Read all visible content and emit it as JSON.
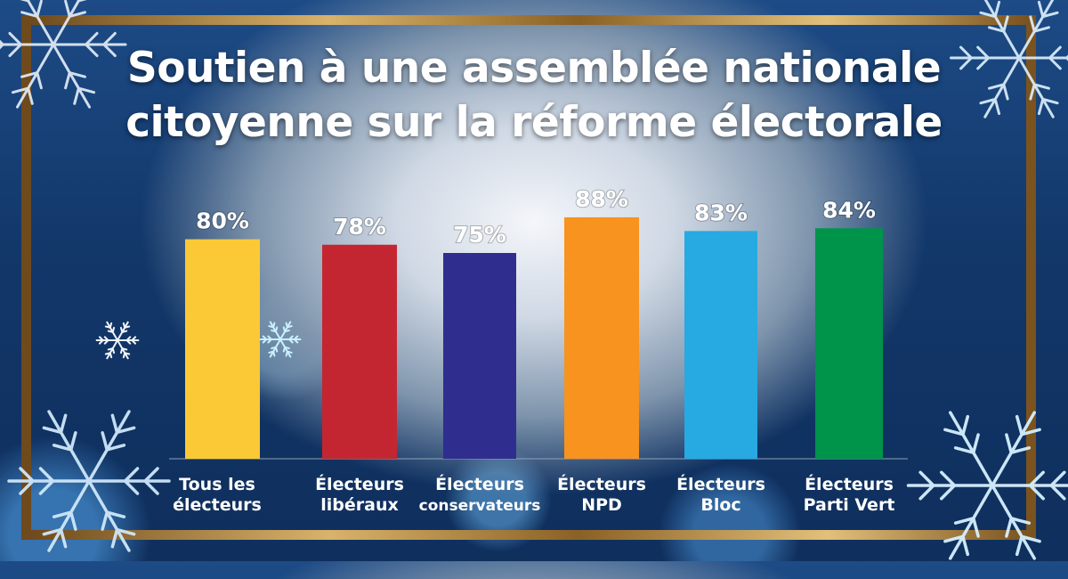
{
  "chart_data": {
    "type": "bar",
    "title_lines": [
      "Soutien à une assemblée nationale",
      "citoyenne sur la réforme électorale"
    ],
    "categories": [
      [
        "Tous les",
        "électeurs"
      ],
      [
        "Électeurs",
        "libéraux"
      ],
      [
        "Électeurs",
        "conservateurs"
      ],
      [
        "Électeurs",
        "NPD"
      ],
      [
        "Électeurs",
        "Bloc"
      ],
      [
        "Électeurs",
        "Parti Vert"
      ]
    ],
    "values": [
      80,
      78,
      75,
      88,
      83,
      84
    ],
    "value_labels": [
      "80%",
      "78%",
      "75%",
      "88%",
      "83%",
      "84%"
    ],
    "colors": [
      "#fbc935",
      "#c42631",
      "#2f2e8f",
      "#f7931e",
      "#27a9e1",
      "#00934a"
    ],
    "unit": "%",
    "grid": false,
    "legend": "none"
  },
  "theme": {
    "frame_color": "#b88a3c",
    "background": "#123769",
    "text_color": "#ffffff"
  }
}
